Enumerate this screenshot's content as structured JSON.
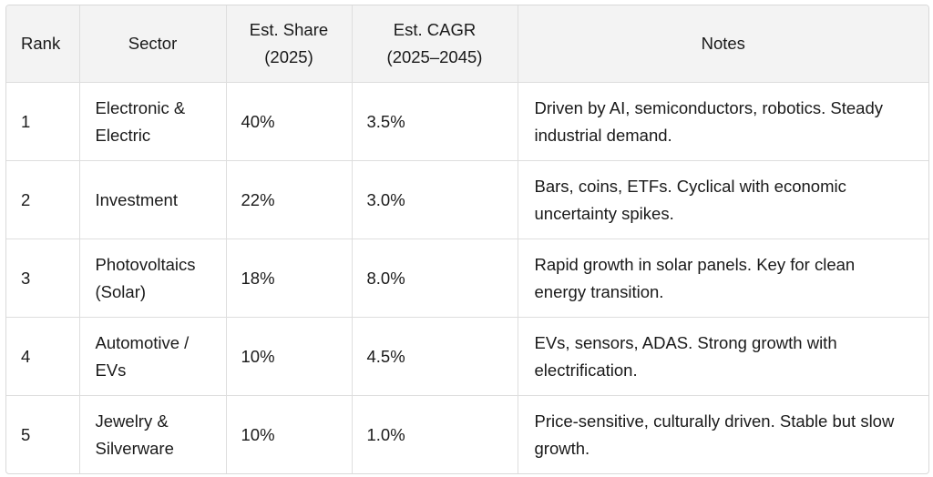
{
  "table": {
    "headers": {
      "rank": "Rank",
      "sector": "Sector",
      "share": "Est. Share (2025)",
      "cagr": "Est. CAGR (2025–2045)",
      "notes": "Notes"
    },
    "rows": [
      {
        "rank": "1",
        "sector": "Electronic & Electric",
        "share": "40%",
        "cagr": "3.5%",
        "notes": "Driven by AI, semiconductors, robotics. Steady industrial demand."
      },
      {
        "rank": "2",
        "sector": "Investment",
        "share": "22%",
        "cagr": "3.0%",
        "notes": "Bars, coins, ETFs. Cyclical with economic uncertainty spikes."
      },
      {
        "rank": "3",
        "sector": "Photovoltaics (Solar)",
        "share": "18%",
        "cagr": "8.0%",
        "notes": "Rapid growth in solar panels. Key for clean energy transition."
      },
      {
        "rank": "4",
        "sector": "Automotive / EVs",
        "share": "10%",
        "cagr": "4.5%",
        "notes": "EVs, sensors, ADAS. Strong growth with electrification."
      },
      {
        "rank": "5",
        "sector": "Jewelry & Silverware",
        "share": "10%",
        "cagr": "1.0%",
        "notes": "Price-sensitive, culturally driven. Stable but slow growth."
      }
    ]
  }
}
